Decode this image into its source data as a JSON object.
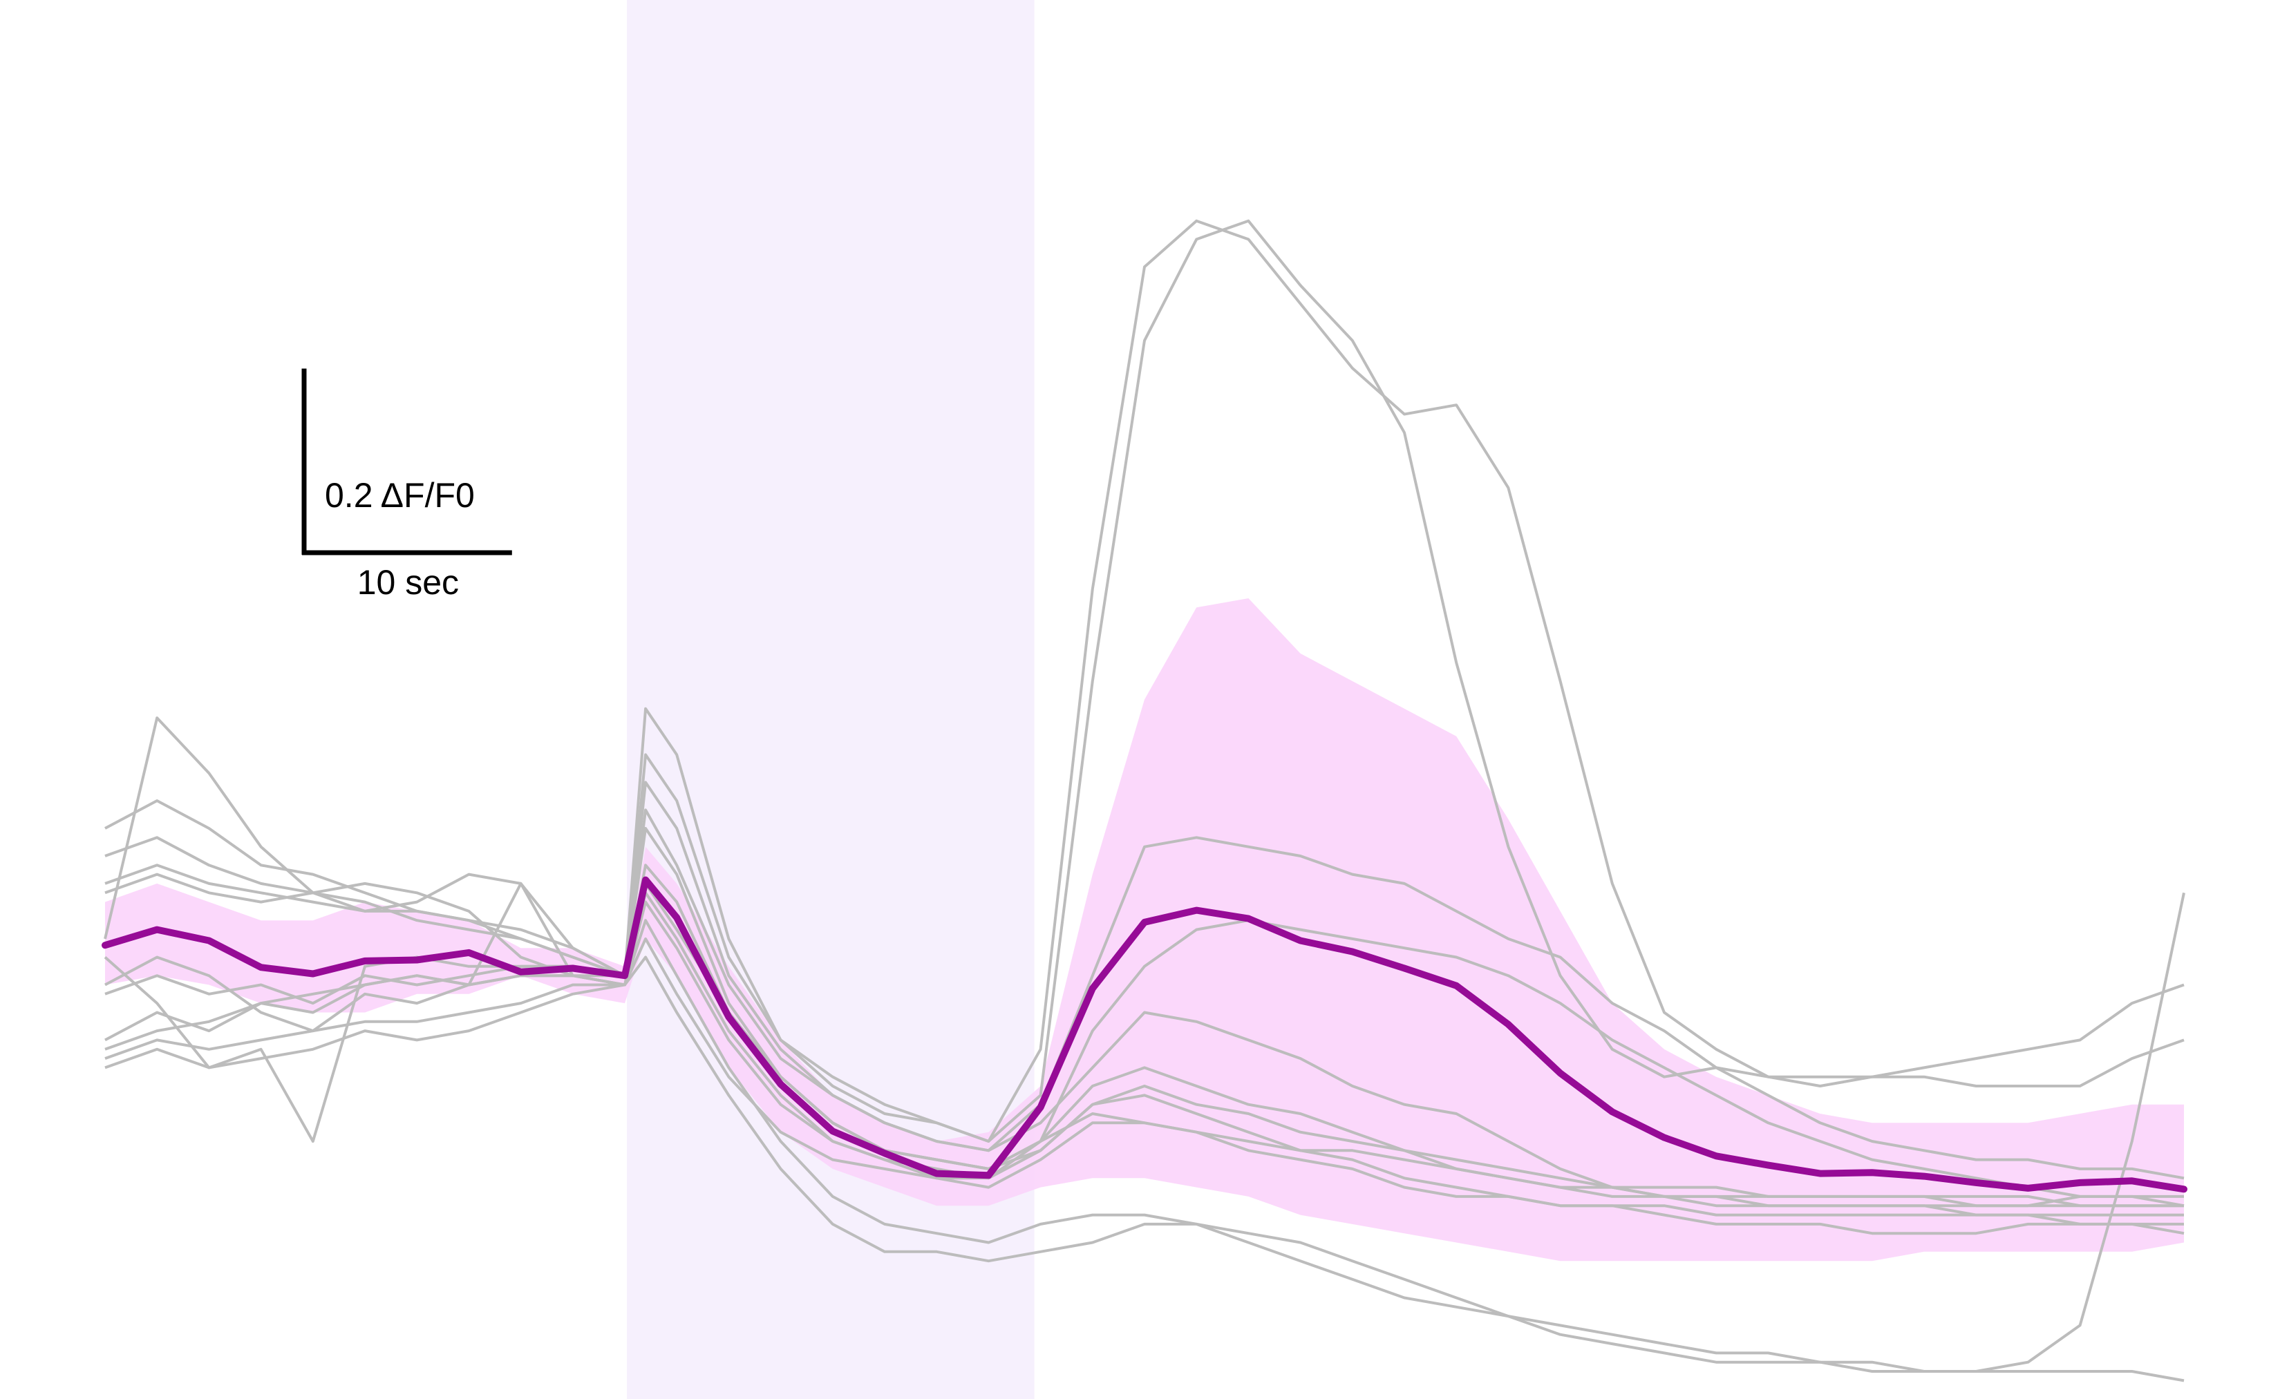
{
  "chart_data": {
    "type": "line",
    "x_unit": "sec",
    "x_range": [
      0,
      100
    ],
    "y_unit": "ΔF/F0",
    "y_range": [
      -0.48,
      1.04
    ],
    "grid": false,
    "stimulus_window": {
      "x": [
        25.1,
        44.7
      ],
      "color": "#f6f0fd"
    },
    "scale_bar": {
      "x_label": "10 sec",
      "y_label": "0.2 ΔF/F0",
      "x_length": 10,
      "y_length": 0.2
    },
    "colors": {
      "individual": "#bcbcbc",
      "mean": "#960b96",
      "band": "#fbd4fb"
    },
    "x": [
      0,
      2.5,
      5,
      7.5,
      10,
      12.5,
      15,
      17.5,
      20,
      22.5,
      25,
      26,
      27.5,
      30,
      32.5,
      35,
      37.5,
      40,
      42.5,
      45,
      47.5,
      50,
      52.5,
      55,
      57.5,
      60,
      62.5,
      65,
      67.5,
      70,
      72.5,
      75,
      77.5,
      80,
      82.5,
      85,
      87.5,
      90,
      92.5,
      95,
      97.5,
      100
    ],
    "mean": {
      "name": "",
      "values": [
        0.013,
        0.03,
        0.018,
        -0.011,
        -0.018,
        -0.004,
        -0.003,
        0.005,
        -0.016,
        -0.012,
        -0.02,
        0.084,
        0.043,
        -0.065,
        -0.138,
        -0.189,
        -0.213,
        -0.235,
        -0.237,
        -0.163,
        -0.034,
        0.038,
        0.051,
        0.042,
        0.018,
        0.006,
        -0.012,
        -0.031,
        -0.073,
        -0.126,
        -0.168,
        -0.196,
        -0.216,
        -0.226,
        -0.235,
        -0.234,
        -0.238,
        -0.245,
        -0.251,
        -0.245,
        -0.243,
        -0.252
      ]
    },
    "band": {
      "upper": [
        0.06,
        0.08,
        0.06,
        0.04,
        0.04,
        0.06,
        0.05,
        0.04,
        0.01,
        0.01,
        -0.01,
        0.12,
        0.08,
        -0.01,
        -0.09,
        -0.15,
        -0.18,
        -0.2,
        -0.19,
        -0.14,
        0.09,
        0.28,
        0.38,
        0.39,
        0.33,
        0.3,
        0.27,
        0.24,
        0.15,
        0.05,
        -0.05,
        -0.1,
        -0.13,
        -0.15,
        -0.17,
        -0.18,
        -0.18,
        -0.18,
        -0.18,
        -0.17,
        -0.16,
        -0.16
      ],
      "lower": [
        -0.03,
        -0.02,
        -0.03,
        -0.05,
        -0.06,
        -0.06,
        -0.04,
        -0.04,
        -0.02,
        -0.04,
        -0.05,
        0.02,
        -0.02,
        -0.12,
        -0.19,
        -0.23,
        -0.25,
        -0.27,
        -0.27,
        -0.25,
        -0.24,
        -0.24,
        -0.25,
        -0.26,
        -0.28,
        -0.29,
        -0.3,
        -0.31,
        -0.32,
        -0.33,
        -0.33,
        -0.33,
        -0.33,
        -0.33,
        -0.33,
        -0.33,
        -0.32,
        -0.32,
        -0.32,
        -0.32,
        -0.32,
        -0.31
      ]
    },
    "traces": [
      {
        "values": [
          0.02,
          0.26,
          0.2,
          0.12,
          0.07,
          0.08,
          0.07,
          0.05,
          0.0,
          -0.02,
          -0.02,
          0.27,
          0.22,
          0.02,
          -0.09,
          -0.14,
          -0.17,
          -0.18,
          -0.2,
          -0.15,
          0.3,
          0.67,
          0.78,
          0.8,
          0.73,
          0.67,
          0.57,
          0.32,
          0.12,
          -0.02,
          -0.1,
          -0.13,
          -0.12,
          -0.13,
          -0.14,
          -0.13,
          -0.13,
          -0.14,
          -0.14,
          -0.14,
          -0.11,
          -0.09
        ]
      },
      {
        "values": [
          0.14,
          0.17,
          0.14,
          0.1,
          0.09,
          0.07,
          0.05,
          0.04,
          0.03,
          0.01,
          -0.02,
          0.22,
          0.17,
          0.0,
          -0.09,
          -0.13,
          -0.16,
          -0.18,
          -0.2,
          -0.1,
          0.4,
          0.75,
          0.8,
          0.78,
          0.71,
          0.64,
          0.59,
          0.6,
          0.51,
          0.3,
          0.08,
          -0.06,
          -0.1,
          -0.13,
          -0.13,
          -0.13,
          -0.12,
          -0.11,
          -0.1,
          -0.09,
          -0.05,
          -0.03
        ]
      },
      {
        "values": [
          0.11,
          0.13,
          0.1,
          0.08,
          0.07,
          0.06,
          0.04,
          0.03,
          0.02,
          0.0,
          -0.02,
          0.19,
          0.14,
          -0.02,
          -0.1,
          -0.15,
          -0.18,
          -0.2,
          -0.21,
          -0.16,
          -0.02,
          0.12,
          0.13,
          0.12,
          0.11,
          0.09,
          0.08,
          0.05,
          0.02,
          0.0,
          -0.05,
          -0.08,
          -0.12,
          -0.15,
          -0.18,
          -0.2,
          -0.21,
          -0.22,
          -0.22,
          -0.23,
          -0.23,
          -0.24
        ]
      },
      {
        "values": [
          0.08,
          0.1,
          0.08,
          0.07,
          0.06,
          0.05,
          0.05,
          0.04,
          0.02,
          0.0,
          -0.02,
          0.14,
          0.09,
          -0.05,
          -0.13,
          -0.18,
          -0.21,
          -0.22,
          -0.23,
          -0.2,
          -0.08,
          -0.01,
          0.03,
          0.04,
          0.03,
          0.02,
          0.01,
          0.0,
          -0.02,
          -0.05,
          -0.09,
          -0.12,
          -0.15,
          -0.18,
          -0.2,
          -0.22,
          -0.23,
          -0.24,
          -0.25,
          -0.26,
          -0.26,
          -0.27
        ]
      },
      {
        "values": [
          -0.04,
          -0.02,
          -0.04,
          -0.03,
          -0.05,
          -0.02,
          -0.03,
          -0.02,
          -0.01,
          -0.01,
          -0.02,
          0.08,
          0.03,
          -0.06,
          -0.13,
          -0.18,
          -0.21,
          -0.22,
          -0.23,
          -0.21,
          -0.16,
          -0.14,
          -0.16,
          -0.17,
          -0.19,
          -0.2,
          -0.21,
          -0.23,
          -0.24,
          -0.25,
          -0.26,
          -0.26,
          -0.26,
          -0.26,
          -0.26,
          -0.26,
          -0.26,
          -0.27,
          -0.27,
          -0.26,
          -0.26,
          -0.26
        ]
      },
      {
        "values": [
          -0.09,
          -0.06,
          -0.08,
          -0.05,
          -0.06,
          -0.03,
          -0.02,
          -0.03,
          -0.02,
          -0.02,
          -0.03,
          0.06,
          0.01,
          -0.09,
          -0.16,
          -0.2,
          -0.22,
          -0.23,
          -0.24,
          -0.2,
          -0.17,
          -0.18,
          -0.19,
          -0.2,
          -0.21,
          -0.21,
          -0.22,
          -0.23,
          -0.24,
          -0.25,
          -0.25,
          -0.26,
          -0.26,
          -0.27,
          -0.27,
          -0.27,
          -0.27,
          -0.28,
          -0.28,
          -0.28,
          -0.28,
          -0.28
        ]
      },
      {
        "values": [
          -0.03,
          0.0,
          -0.02,
          -0.06,
          -0.08,
          -0.04,
          -0.05,
          -0.03,
          -0.02,
          -0.02,
          -0.03,
          0.02,
          -0.04,
          -0.13,
          -0.19,
          -0.22,
          -0.23,
          -0.24,
          -0.25,
          -0.22,
          -0.18,
          -0.18,
          -0.19,
          -0.21,
          -0.22,
          -0.23,
          -0.25,
          -0.26,
          -0.26,
          -0.27,
          -0.27,
          -0.28,
          -0.29,
          -0.29,
          -0.29,
          -0.3,
          -0.3,
          -0.3,
          -0.29,
          -0.29,
          -0.29,
          -0.3
        ]
      },
      {
        "values": [
          -0.12,
          -0.1,
          -0.12,
          -0.11,
          -0.1,
          -0.08,
          -0.09,
          -0.08,
          -0.06,
          -0.04,
          -0.03,
          0.04,
          -0.02,
          -0.12,
          -0.2,
          -0.26,
          -0.29,
          -0.3,
          -0.31,
          -0.29,
          -0.28,
          -0.28,
          -0.29,
          -0.3,
          -0.31,
          -0.33,
          -0.35,
          -0.37,
          -0.39,
          -0.4,
          -0.41,
          -0.42,
          -0.43,
          -0.43,
          -0.44,
          -0.44,
          -0.45,
          -0.45,
          -0.44,
          -0.4,
          -0.2,
          0.07
        ]
      },
      {
        "values": [
          -0.11,
          -0.09,
          -0.1,
          -0.09,
          -0.08,
          -0.07,
          -0.07,
          -0.06,
          -0.05,
          -0.03,
          -0.03,
          0.0,
          -0.06,
          -0.15,
          -0.23,
          -0.29,
          -0.32,
          -0.32,
          -0.33,
          -0.32,
          -0.31,
          -0.29,
          -0.29,
          -0.31,
          -0.33,
          -0.35,
          -0.37,
          -0.38,
          -0.39,
          -0.41,
          -0.42,
          -0.43,
          -0.44,
          -0.44,
          -0.44,
          -0.45,
          -0.45,
          -0.45,
          -0.45,
          -0.45,
          -0.45,
          -0.46
        ]
      },
      {
        "values": [
          0.07,
          0.09,
          0.07,
          0.06,
          0.07,
          0.05,
          0.06,
          0.09,
          0.08,
          0.01,
          -0.02,
          0.16,
          0.1,
          -0.03,
          -0.11,
          -0.15,
          -0.18,
          -0.2,
          -0.21,
          -0.18,
          -0.12,
          -0.06,
          -0.07,
          -0.09,
          -0.11,
          -0.14,
          -0.16,
          -0.17,
          -0.2,
          -0.23,
          -0.25,
          -0.26,
          -0.27,
          -0.27,
          -0.27,
          -0.27,
          -0.27,
          -0.27,
          -0.27,
          -0.27,
          -0.27,
          -0.27
        ]
      },
      {
        "values": [
          0.0,
          -0.05,
          -0.12,
          -0.1,
          -0.2,
          -0.01,
          0.0,
          -0.01,
          -0.01,
          -0.01,
          -0.02,
          0.1,
          0.06,
          -0.06,
          -0.13,
          -0.18,
          -0.21,
          -0.22,
          -0.23,
          -0.2,
          -0.14,
          -0.12,
          -0.14,
          -0.16,
          -0.17,
          -0.19,
          -0.21,
          -0.22,
          -0.23,
          -0.24,
          -0.25,
          -0.25,
          -0.25,
          -0.26,
          -0.26,
          -0.26,
          -0.26,
          -0.26,
          -0.26,
          -0.27,
          -0.27,
          -0.27
        ]
      },
      {
        "values": [
          -0.1,
          -0.08,
          -0.07,
          -0.05,
          -0.04,
          -0.03,
          -0.02,
          -0.03,
          0.08,
          -0.02,
          -0.03,
          0.07,
          0.02,
          -0.08,
          -0.15,
          -0.2,
          -0.22,
          -0.24,
          -0.24,
          -0.21,
          -0.16,
          -0.15,
          -0.17,
          -0.19,
          -0.21,
          -0.22,
          -0.24,
          -0.25,
          -0.26,
          -0.27,
          -0.27,
          -0.27,
          -0.28,
          -0.28,
          -0.28,
          -0.28,
          -0.28,
          -0.28,
          -0.28,
          -0.29,
          -0.29,
          -0.29
        ]
      }
    ]
  }
}
